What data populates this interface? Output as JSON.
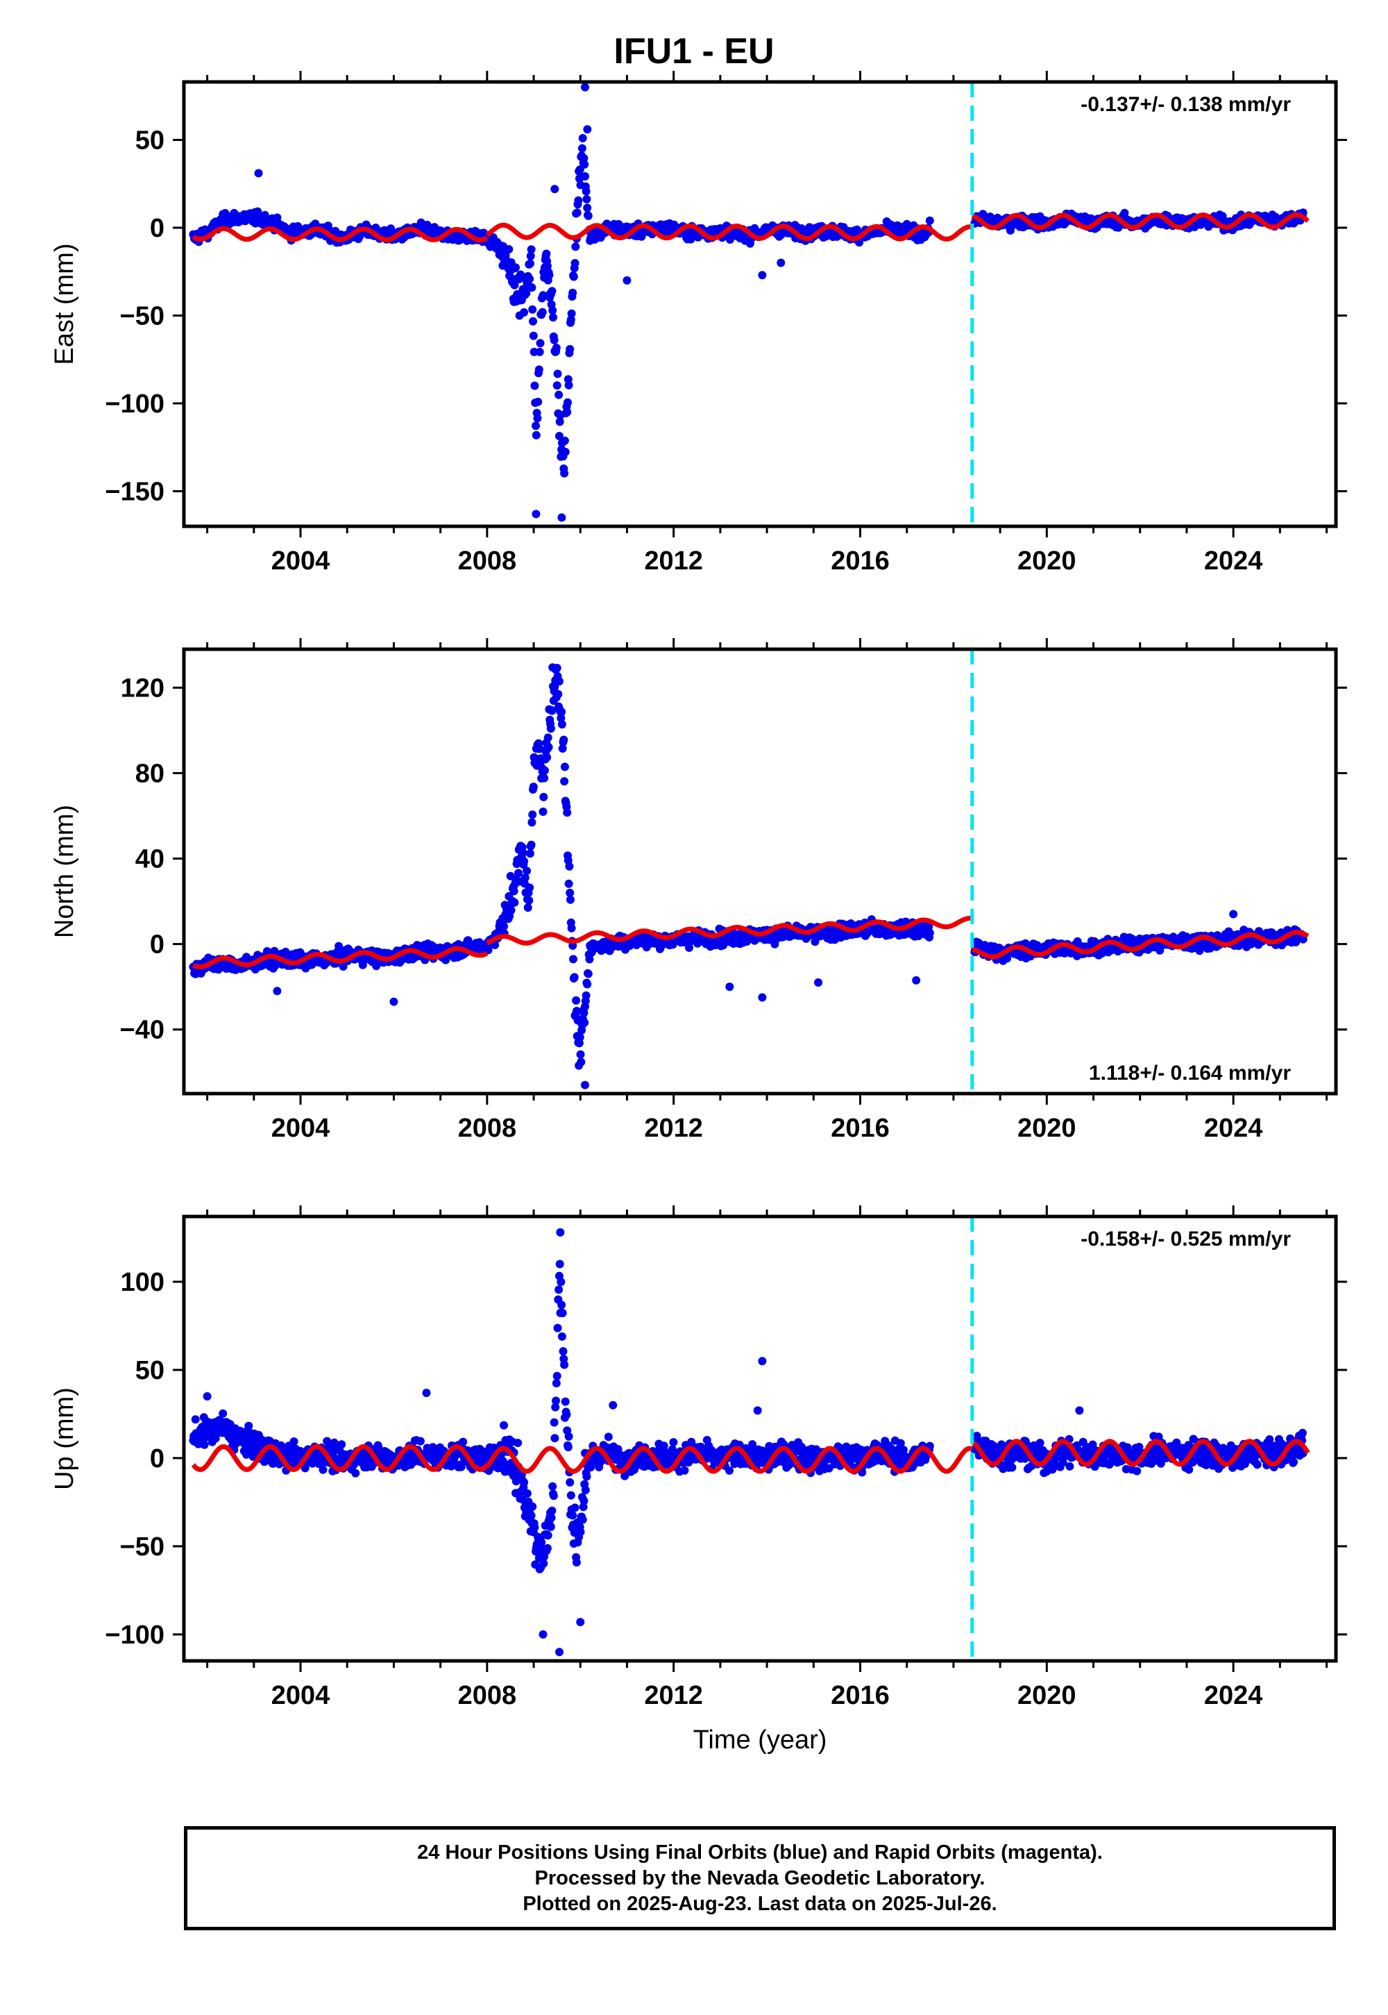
{
  "title": "IFU1 - EU",
  "xlabel": "Time (year)",
  "footer": [
    "24 Hour Positions Using Final Orbits (blue) and Rapid Orbits (magenta).",
    "Processed by the Nevada Geodetic Laboratory.",
    "Plotted on 2025-Aug-23. Last data on 2025-Jul-26."
  ],
  "colors": {
    "final_orbits": "#0000ee",
    "model": "#ee0000",
    "step_line": "#00e5ee",
    "frame": "#000000"
  },
  "chart_data": [
    {
      "type": "scatter",
      "panel": "east",
      "ylabel": "East (mm)",
      "rate_label": "-0.137+/- 0.138 mm/yr",
      "rate_position": "top-right",
      "xlim": [
        2001.5,
        2026.2
      ],
      "ylim": [
        -170,
        83
      ],
      "xticks": [
        2004,
        2008,
        2012,
        2016,
        2020,
        2024
      ],
      "xtick_labels": [
        "2004",
        "2008",
        "2012",
        "2016",
        "2020",
        "2024"
      ],
      "yticks": [
        50,
        0,
        -50,
        -100,
        -150
      ],
      "ytick_labels": [
        "50",
        "0",
        "−50",
        "−100",
        "−150"
      ],
      "step_x": 2018.4,
      "series": [
        {
          "values": [
            [
              2001.7,
              -6
            ],
            [
              2002.0,
              -3
            ],
            [
              2002.4,
              5
            ],
            [
              2002.9,
              6
            ],
            [
              2003.3,
              4
            ],
            [
              2003.8,
              -3
            ],
            [
              2004.3,
              -1
            ],
            [
              2004.9,
              -6
            ],
            [
              2005.4,
              -2
            ],
            [
              2006.0,
              -5
            ],
            [
              2006.6,
              -1
            ],
            [
              2007.2,
              -5
            ],
            [
              2007.8,
              -4
            ],
            [
              2008.2,
              -10
            ],
            [
              2008.45,
              -20
            ],
            [
              2008.6,
              -35
            ],
            [
              2008.8,
              -40
            ],
            [
              2008.95,
              -20
            ],
            [
              2009.05,
              -120
            ],
            [
              2009.15,
              -55
            ],
            [
              2009.25,
              -15
            ],
            [
              2009.35,
              -30
            ],
            [
              2009.45,
              -60
            ],
            [
              2009.55,
              -110
            ],
            [
              2009.65,
              -140
            ],
            [
              2009.75,
              -80
            ],
            [
              2009.85,
              -30
            ],
            [
              2009.95,
              20
            ],
            [
              2010.05,
              45
            ],
            [
              2010.2,
              -5
            ],
            [
              2010.6,
              0
            ],
            [
              2011.2,
              -2
            ],
            [
              2011.8,
              0
            ],
            [
              2012.4,
              -3
            ],
            [
              2013.0,
              -2
            ],
            [
              2013.6,
              -4
            ],
            [
              2014.2,
              -1
            ],
            [
              2014.8,
              -3
            ],
            [
              2015.4,
              -2
            ],
            [
              2016.0,
              -4
            ],
            [
              2016.6,
              -1
            ],
            [
              2017.2,
              -3
            ],
            [
              2018.5,
              5
            ],
            [
              2019.0,
              3
            ],
            [
              2019.5,
              4
            ],
            [
              2020.0,
              2
            ],
            [
              2020.5,
              5
            ],
            [
              2021.0,
              3
            ],
            [
              2021.5,
              4
            ],
            [
              2022.0,
              2
            ],
            [
              2022.5,
              5
            ],
            [
              2023.0,
              3
            ],
            [
              2023.5,
              4
            ],
            [
              2024.0,
              2
            ],
            [
              2024.5,
              5
            ],
            [
              2025.0,
              4
            ],
            [
              2025.5,
              7
            ]
          ]
        }
      ],
      "outliers": [
        [
          2003.1,
          31
        ],
        [
          2009.6,
          -165
        ],
        [
          2009.05,
          -163
        ],
        [
          2010.1,
          80
        ],
        [
          2010.15,
          56
        ],
        [
          2011.0,
          -30
        ],
        [
          2013.9,
          -27
        ],
        [
          2014.3,
          -20
        ],
        [
          2009.45,
          22
        ]
      ],
      "model": {
        "segments": [
          [
            2001.7,
            2008.0,
            -3.5,
            0.0,
            -0.08,
            3.0
          ],
          [
            2008.0,
            2018.4,
            -2.0,
            0.0,
            -0.1,
            3.5
          ],
          [
            2018.4,
            2025.6,
            3.5,
            0.0,
            0.05,
            3.5
          ]
        ]
      }
    },
    {
      "type": "scatter",
      "panel": "north",
      "ylabel": "North (mm)",
      "rate_label": "1.118+/- 0.164 mm/yr",
      "rate_position": "bottom-right",
      "xlim": [
        2001.5,
        2026.2
      ],
      "ylim": [
        -70,
        138
      ],
      "xticks": [
        2004,
        2008,
        2012,
        2016,
        2020,
        2024
      ],
      "xtick_labels": [
        "2004",
        "2008",
        "2012",
        "2016",
        "2020",
        "2024"
      ],
      "yticks": [
        120,
        80,
        40,
        0,
        -40
      ],
      "ytick_labels": [
        "120",
        "80",
        "40",
        "0",
        "−40"
      ],
      "step_x": 2018.4,
      "series": [
        {
          "values": [
            [
              2001.7,
              -12
            ],
            [
              2002.2,
              -9
            ],
            [
              2002.8,
              -10
            ],
            [
              2003.4,
              -7
            ],
            [
              2004.0,
              -8
            ],
            [
              2004.6,
              -7
            ],
            [
              2005.2,
              -5
            ],
            [
              2005.8,
              -7
            ],
            [
              2006.4,
              -4
            ],
            [
              2007.0,
              -4
            ],
            [
              2007.6,
              -2
            ],
            [
              2008.0,
              -1
            ],
            [
              2008.4,
              10
            ],
            [
              2008.6,
              30
            ],
            [
              2008.75,
              42
            ],
            [
              2008.9,
              20
            ],
            [
              2009.0,
              80
            ],
            [
              2009.1,
              100
            ],
            [
              2009.2,
              70
            ],
            [
              2009.3,
              95
            ],
            [
              2009.4,
              115
            ],
            [
              2009.5,
              125
            ],
            [
              2009.6,
              110
            ],
            [
              2009.7,
              60
            ],
            [
              2009.8,
              10
            ],
            [
              2009.9,
              -30
            ],
            [
              2010.0,
              -55
            ],
            [
              2010.2,
              -2
            ],
            [
              2010.8,
              1
            ],
            [
              2011.4,
              2
            ],
            [
              2012.0,
              2
            ],
            [
              2012.6,
              3
            ],
            [
              2013.2,
              3
            ],
            [
              2013.8,
              4
            ],
            [
              2014.4,
              5
            ],
            [
              2015.0,
              5
            ],
            [
              2015.6,
              6
            ],
            [
              2016.2,
              7
            ],
            [
              2016.8,
              7
            ],
            [
              2017.4,
              6
            ],
            [
              2018.5,
              -2
            ],
            [
              2019.0,
              -4
            ],
            [
              2019.6,
              -3
            ],
            [
              2020.2,
              -2
            ],
            [
              2020.8,
              -2
            ],
            [
              2021.4,
              -1
            ],
            [
              2022.0,
              0
            ],
            [
              2022.6,
              1
            ],
            [
              2023.2,
              1
            ],
            [
              2023.8,
              2
            ],
            [
              2024.4,
              3
            ],
            [
              2025.0,
              3
            ],
            [
              2025.5,
              4
            ]
          ]
        }
      ],
      "outliers": [
        [
          2010.1,
          -66
        ],
        [
          2006.0,
          -27
        ],
        [
          2003.5,
          -22
        ],
        [
          2013.2,
          -20
        ],
        [
          2013.9,
          -25
        ],
        [
          2015.1,
          -18
        ],
        [
          2017.2,
          -17
        ],
        [
          2024.0,
          14
        ]
      ],
      "model": {
        "segments": [
          [
            2001.7,
            2008.0,
            -9.0,
            0.95,
            -0.05,
            1.8
          ],
          [
            2008.0,
            2018.4,
            1.5,
            0.9,
            -0.05,
            1.8
          ],
          [
            2018.4,
            2025.6,
            -4.5,
            1.1,
            0.05,
            2.0
          ]
        ]
      }
    },
    {
      "type": "scatter",
      "panel": "up",
      "ylabel": "Up (mm)",
      "rate_label": "-0.158+/- 0.525 mm/yr",
      "rate_position": "top-right",
      "xlim": [
        2001.5,
        2026.2
      ],
      "ylim": [
        -115,
        137
      ],
      "xticks": [
        2004,
        2008,
        2012,
        2016,
        2020,
        2024
      ],
      "xtick_labels": [
        "2004",
        "2008",
        "2012",
        "2016",
        "2020",
        "2024"
      ],
      "yticks": [
        100,
        50,
        0,
        -50,
        -100
      ],
      "ytick_labels": [
        "100",
        "50",
        "0",
        "−50",
        "−100"
      ],
      "step_x": 2018.4,
      "series": [
        {
          "values": [
            [
              2001.7,
              12
            ],
            [
              2002.0,
              15
            ],
            [
              2002.3,
              18
            ],
            [
              2002.7,
              10
            ],
            [
              2003.0,
              8
            ],
            [
              2003.5,
              2
            ],
            [
              2004.0,
              0
            ],
            [
              2004.5,
              3
            ],
            [
              2005.0,
              -2
            ],
            [
              2005.5,
              2
            ],
            [
              2006.0,
              -1
            ],
            [
              2006.5,
              3
            ],
            [
              2007.0,
              0
            ],
            [
              2007.5,
              2
            ],
            [
              2008.0,
              -1
            ],
            [
              2008.5,
              4
            ],
            [
              2008.8,
              -20
            ],
            [
              2009.0,
              -40
            ],
            [
              2009.2,
              -55
            ],
            [
              2009.4,
              -30
            ],
            [
              2009.5,
              60
            ],
            [
              2009.55,
              110
            ],
            [
              2009.6,
              80
            ],
            [
              2009.7,
              20
            ],
            [
              2009.8,
              -20
            ],
            [
              2009.9,
              -50
            ],
            [
              2010.2,
              0
            ],
            [
              2010.6,
              3
            ],
            [
              2011.0,
              -1
            ],
            [
              2011.5,
              2
            ],
            [
              2012.0,
              0
            ],
            [
              2012.5,
              3
            ],
            [
              2013.0,
              -1
            ],
            [
              2013.5,
              2
            ],
            [
              2014.0,
              0
            ],
            [
              2014.5,
              3
            ],
            [
              2015.0,
              -1
            ],
            [
              2015.5,
              2
            ],
            [
              2016.0,
              0
            ],
            [
              2016.5,
              3
            ],
            [
              2017.0,
              -1
            ],
            [
              2017.4,
              2
            ],
            [
              2018.5,
              8
            ],
            [
              2019.0,
              2
            ],
            [
              2019.5,
              3
            ],
            [
              2020.0,
              -1
            ],
            [
              2020.5,
              4
            ],
            [
              2021.0,
              1
            ],
            [
              2021.5,
              3
            ],
            [
              2022.0,
              0
            ],
            [
              2022.5,
              5
            ],
            [
              2023.0,
              2
            ],
            [
              2023.5,
              3
            ],
            [
              2024.0,
              0
            ],
            [
              2024.5,
              4
            ],
            [
              2025.0,
              1
            ],
            [
              2025.5,
              8
            ]
          ]
        }
      ],
      "outliers": [
        [
          2009.2,
          -100
        ],
        [
          2009.55,
          -110
        ],
        [
          2010.0,
          -93
        ],
        [
          2009.57,
          128
        ],
        [
          2013.9,
          55
        ],
        [
          2013.8,
          27
        ],
        [
          2006.7,
          37
        ],
        [
          2002.0,
          35
        ],
        [
          2010.7,
          30
        ],
        [
          2020.7,
          27
        ]
      ],
      "model": {
        "segments": [
          [
            2001.7,
            2008.0,
            0.0,
            0.0,
            0.0,
            6.5
          ],
          [
            2008.0,
            2018.4,
            -1.0,
            0.0,
            0.0,
            6.5
          ],
          [
            2018.4,
            2025.6,
            3.0,
            0.0,
            0.0,
            6.5
          ]
        ]
      }
    }
  ]
}
